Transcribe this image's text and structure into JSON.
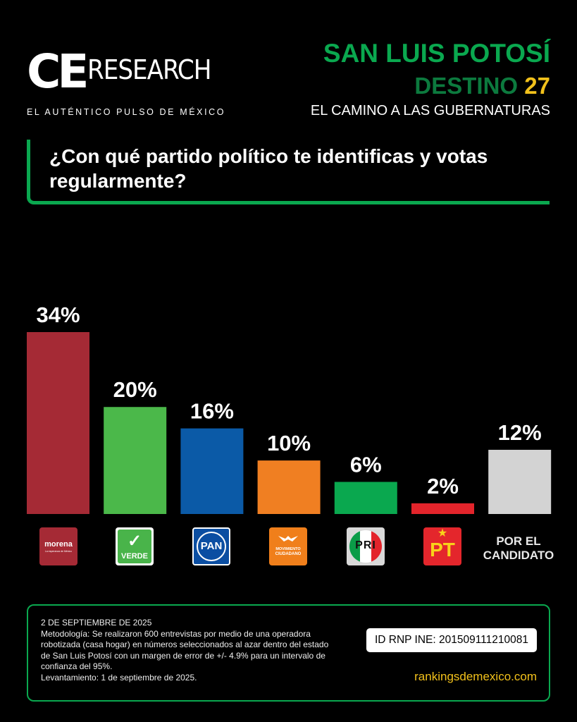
{
  "logo": {
    "ce": "CE",
    "research": "RESEARCH",
    "tagline": "EL AUTÉNTICO PULSO DE MÉXICO"
  },
  "header": {
    "state": "SAN LUIS POTOSÍ",
    "destino_word": "DESTINO",
    "destino_num": "27",
    "subtitle": "EL CAMINO A LAS GUBERNATURAS"
  },
  "question": "¿Con qué partido político te identificas y votas regularmente?",
  "parties": {
    "morena": {
      "name": "morena",
      "tagline": "La esperanza de México"
    },
    "verde": {
      "name": "VERDE"
    },
    "pan": {
      "name": "PAN"
    },
    "mc": {
      "line1": "MOVIMIENTO",
      "line2": "CIUDADANO"
    },
    "pri": {
      "name": "PRI"
    },
    "pt": {
      "name": "PT"
    },
    "candidato": "POR EL CANDIDATO"
  },
  "chart_data": {
    "type": "bar",
    "categories": [
      "morena",
      "VERDE",
      "PAN",
      "MOVIMIENTO CIUDADANO",
      "PRI",
      "PT",
      "POR EL CANDIDATO"
    ],
    "values": [
      34,
      20,
      16,
      10,
      6,
      2,
      12
    ],
    "value_labels": [
      "34%",
      "20%",
      "16%",
      "10%",
      "6%",
      "2%",
      "12%"
    ],
    "colors": [
      "#a52a35",
      "#4bb84a",
      "#0b5aa7",
      "#f07f22",
      "#0aa84f",
      "#e3242b",
      "#d3d3d3"
    ],
    "ylim": [
      0,
      34
    ],
    "grid": false
  },
  "footer": {
    "date": "2 DE SEPTIEMBRE DE 2025",
    "methodology": "Metodología: Se realizaron 600 entrevistas por medio de una operadora robotizada (casa hogar) en números seleccionados al azar dentro del estado de San Luis Potosí con un margen de error de +/- 4.9% para un intervalo de confianza del 95%.",
    "fieldwork": "Levantamiento: 1 de septiembre de 2025.",
    "rnp": "ID RNP INE: 201509111210081",
    "website": "rankingsdemexico.com"
  },
  "colors": {
    "accent_green": "#0aa84f",
    "dark_green": "#0c7a3e",
    "gold": "#f2c11b",
    "background": "#000000"
  }
}
